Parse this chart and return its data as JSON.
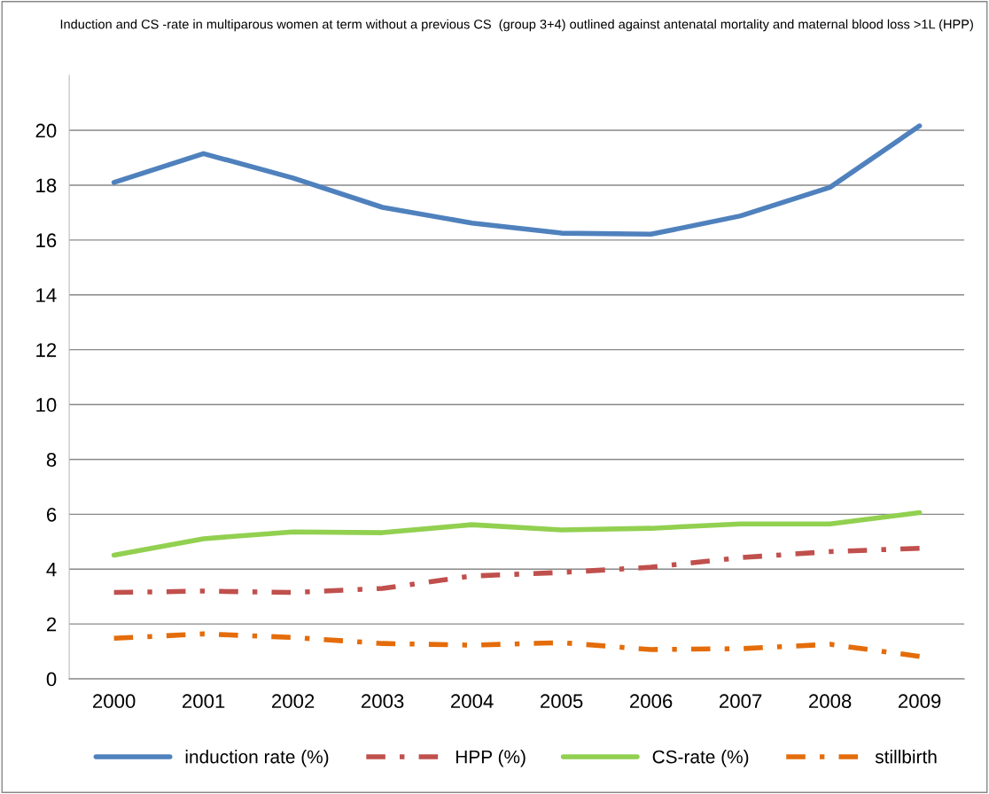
{
  "chart_data": {
    "type": "line",
    "title": "Induction and CS -rate in multiparous women at term without a previous CS  (group 3+4) outlined against antenatal mortality and maternal blood loss >1L (HPP)",
    "categories": [
      "2000",
      "2001",
      "2002",
      "2003",
      "2004",
      "2005",
      "2006",
      "2007",
      "2008",
      "2009"
    ],
    "series": [
      {
        "name": "induction rate (%)",
        "color": "#4f81bd",
        "line_style": "solid",
        "values": [
          18.1,
          19.15,
          18.26,
          17.19,
          16.62,
          16.25,
          16.21,
          16.88,
          17.92,
          20.16
        ]
      },
      {
        "name": "HPP (%)",
        "color": "#c0504d",
        "line_style": "dashdot",
        "values": [
          3.15,
          3.2,
          3.15,
          3.3,
          3.75,
          3.88,
          4.07,
          4.42,
          4.64,
          4.76
        ]
      },
      {
        "name": "CS-rate (%)",
        "color": "#92d050",
        "line_style": "solid",
        "values": [
          4.51,
          5.11,
          5.36,
          5.33,
          5.62,
          5.43,
          5.49,
          5.65,
          5.65,
          6.06
        ]
      },
      {
        "name": "stillbirth",
        "color": "#e46c0a",
        "line_style": "dashdot",
        "values": [
          1.48,
          1.64,
          1.51,
          1.29,
          1.23,
          1.32,
          1.07,
          1.1,
          1.26,
          0.82
        ]
      }
    ],
    "ylim": [
      0,
      22
    ],
    "yticks": [
      0,
      2,
      4,
      6,
      8,
      10,
      12,
      14,
      16,
      18,
      20
    ],
    "grid": "y",
    "legend": "bottom",
    "marker": "none"
  }
}
